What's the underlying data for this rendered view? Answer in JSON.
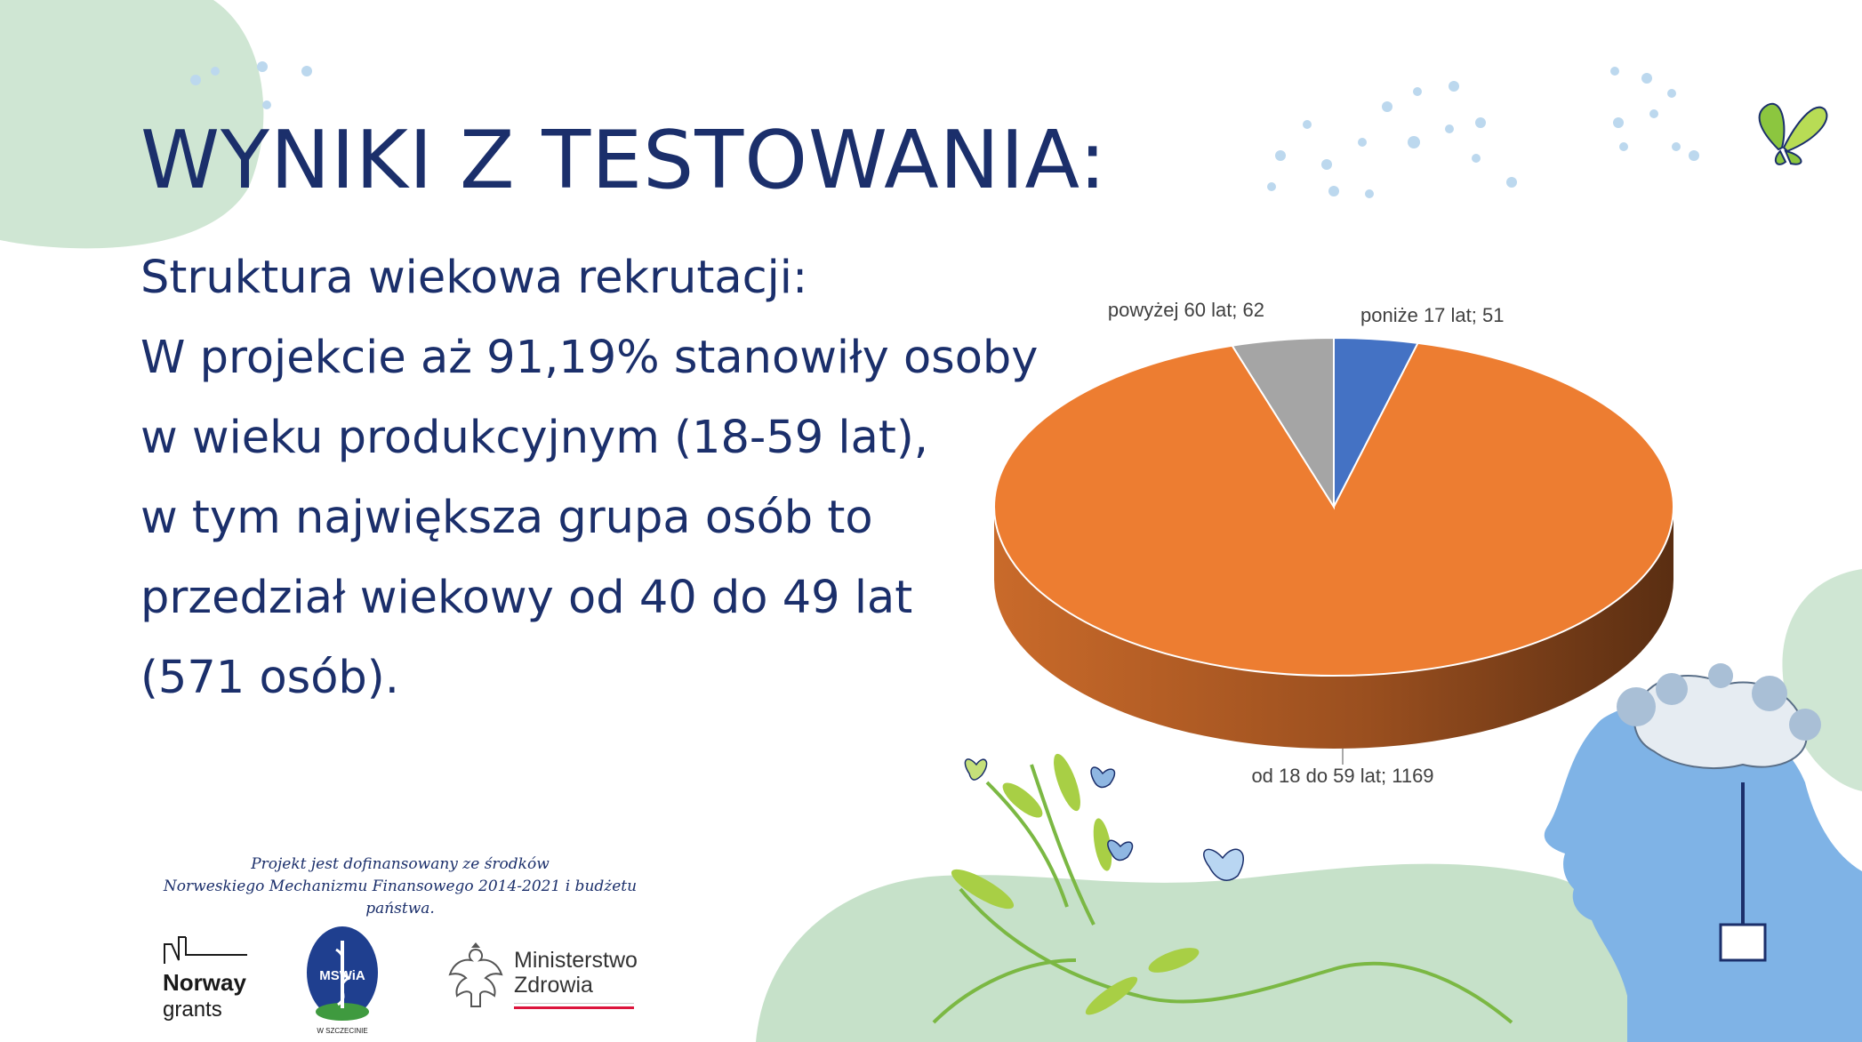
{
  "slide": {
    "title": "WYNIKI Z TESTOWANIA:",
    "body_lines": [
      "Struktura wiekowa rekrutacji:",
      "W projekcie aż 91,19% stanowiły osoby",
      "w wieku produkcyjnym (18-59 lat),",
      "w tym największa grupa osób to",
      "przedział wiekowy od 40 do 49 lat",
      "(571 osób)."
    ]
  },
  "chart_data": {
    "type": "pie",
    "style": "3d",
    "title": "",
    "categories": [
      "poniże 17 lat",
      "od 18 do 59 lat",
      "powyżej 60 lat"
    ],
    "values": [
      51,
      1169,
      62
    ],
    "data_labels": [
      "poniże 17 lat; 51",
      "od 18 do 59 lat; 1169",
      "powyżej 60 lat; 62"
    ],
    "colors": [
      "#4472c4",
      "#ed7d31",
      "#a5a5a5"
    ],
    "legend": "none"
  },
  "footer": {
    "funding_line1": "Projekt jest dofinansowany ze środków",
    "funding_line2": "Norweskiego Mechanizmu Finansowego 2014-2021 i budżetu państwa.",
    "norway_name": "Norway",
    "norway_sub": "grants",
    "msw_text": "MSWiA",
    "msw_city": "W SZCZECINIE",
    "mz_line1": "Ministerstwo",
    "mz_line2": "Zdrowia"
  },
  "icons": [
    "butterfly-icon",
    "norway-grants-logo-icon",
    "mswia-logo-icon",
    "polish-eagle-icon",
    "head-with-brain-illustration"
  ]
}
